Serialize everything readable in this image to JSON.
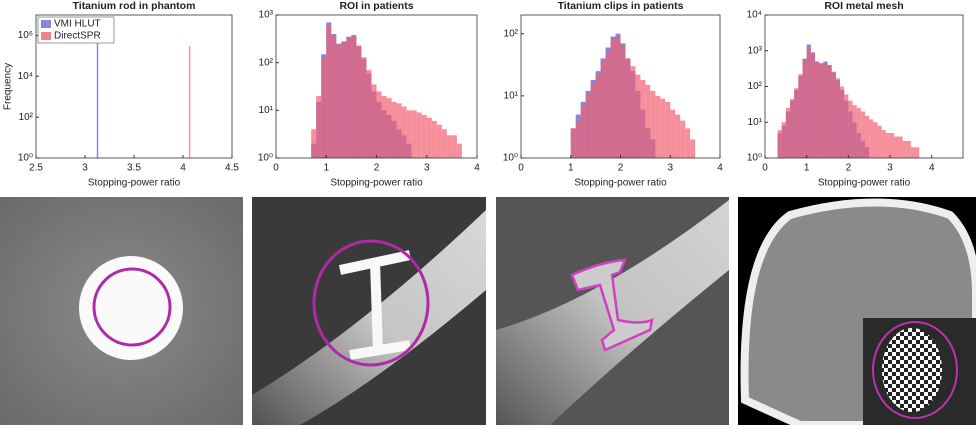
{
  "chart_data": [
    {
      "type": "histogram",
      "title": "Titanium rod in phantom",
      "xlabel": "Stopping-power ratio",
      "ylabel": "Frequency",
      "log_y": true,
      "legend": "upper left",
      "xlim": [
        2.5,
        4.5
      ],
      "xticks": [
        2.5,
        3,
        3.5,
        4,
        4.5
      ],
      "ylim": [
        1,
        10000000
      ],
      "yticks": [
        {
          "value": 1,
          "label": "10⁰"
        },
        {
          "value": 100,
          "label": "10²"
        },
        {
          "value": 10000,
          "label": "10⁴"
        },
        {
          "value": 1000000,
          "label": "10⁶"
        }
      ],
      "series": [
        {
          "name": "VMI HLUT",
          "color": "#6a6ad0",
          "bins": [
            3.12,
            3.135
          ],
          "values": [
            600000
          ]
        },
        {
          "name": "DirectSPR",
          "color": "#f26070",
          "bins": [
            4.06,
            4.075
          ],
          "values": [
            300000
          ]
        }
      ]
    },
    {
      "type": "histogram",
      "title": "ROI in patients",
      "xlabel": "Stopping-power ratio",
      "log_y": true,
      "xlim": [
        0,
        4
      ],
      "xticks": [
        0,
        1,
        2,
        3,
        4
      ],
      "ylim": [
        1,
        1000
      ],
      "yticks": [
        {
          "value": 1,
          "label": "10⁰"
        },
        {
          "value": 10,
          "label": "10¹"
        },
        {
          "value": 100,
          "label": "10²"
        },
        {
          "value": 1000,
          "label": "10³"
        }
      ],
      "bins": [
        0.7,
        0.8,
        0.9,
        1.0,
        1.1,
        1.2,
        1.3,
        1.4,
        1.5,
        1.6,
        1.7,
        1.8,
        1.9,
        2.0,
        2.1,
        2.2,
        2.3,
        2.4,
        2.5,
        2.6,
        2.7,
        2.8,
        2.9,
        3.0,
        3.1,
        3.2,
        3.3,
        3.4,
        3.5,
        3.6,
        3.7
      ],
      "series": [
        {
          "name": "VMI HLUT",
          "color": "#6a6ad0",
          "values": [
            2,
            15,
            150,
            700,
            400,
            250,
            280,
            350,
            380,
            220,
            120,
            60,
            25,
            15,
            10,
            8,
            6,
            4,
            3,
            2,
            1,
            1,
            1,
            1,
            1,
            1,
            1,
            1,
            1,
            1
          ]
        },
        {
          "name": "DirectSPR",
          "color": "#f26070",
          "values": [
            4,
            20,
            130,
            600,
            380,
            240,
            270,
            330,
            360,
            230,
            130,
            70,
            35,
            25,
            20,
            18,
            15,
            14,
            12,
            10,
            10,
            9,
            8,
            7,
            6,
            5,
            4,
            3,
            3,
            2
          ]
        }
      ]
    },
    {
      "type": "histogram",
      "title": "Titanium clips in patients",
      "xlabel": "Stopping-power ratio",
      "log_y": true,
      "xlim": [
        0,
        4
      ],
      "xticks": [
        0,
        1,
        2,
        3,
        4
      ],
      "ylim": [
        1,
        200
      ],
      "yticks": [
        {
          "value": 1,
          "label": "10⁰"
        },
        {
          "value": 10,
          "label": "10¹"
        },
        {
          "value": 100,
          "label": "10²"
        }
      ],
      "bins": [
        0.9,
        1.0,
        1.1,
        1.2,
        1.3,
        1.4,
        1.5,
        1.6,
        1.7,
        1.8,
        1.9,
        2.0,
        2.1,
        2.2,
        2.3,
        2.4,
        2.5,
        2.6,
        2.7,
        2.8,
        2.9,
        3.0,
        3.1,
        3.2,
        3.3,
        3.4,
        3.5
      ],
      "series": [
        {
          "name": "VMI HLUT",
          "color": "#6a6ad0",
          "values": [
            1,
            3,
            5,
            8,
            12,
            18,
            25,
            40,
            60,
            90,
            100,
            70,
            40,
            25,
            12,
            6,
            3,
            2,
            1,
            1,
            1,
            1,
            1,
            1,
            1,
            1
          ]
        },
        {
          "name": "DirectSPR",
          "color": "#f26070",
          "values": [
            1,
            3,
            4,
            7,
            11,
            16,
            22,
            35,
            50,
            80,
            90,
            65,
            40,
            30,
            22,
            18,
            15,
            12,
            10,
            9,
            8,
            6,
            5,
            4,
            3,
            2
          ]
        }
      ]
    },
    {
      "type": "histogram",
      "title": "ROI metal mesh",
      "xlabel": "Stopping-power ratio",
      "log_y": true,
      "xlim": [
        0,
        4.75
      ],
      "xticks": [
        0,
        1,
        2,
        3,
        4
      ],
      "ylim": [
        1,
        10000
      ],
      "yticks": [
        {
          "value": 1,
          "label": "10⁰"
        },
        {
          "value": 10,
          "label": "10¹"
        },
        {
          "value": 100,
          "label": "10²"
        },
        {
          "value": 1000,
          "label": "10³"
        },
        {
          "value": 10000,
          "label": "10⁴"
        }
      ],
      "bins": [
        0.3,
        0.4,
        0.5,
        0.6,
        0.7,
        0.8,
        0.9,
        1.0,
        1.1,
        1.2,
        1.3,
        1.4,
        1.5,
        1.6,
        1.7,
        1.8,
        1.9,
        2.0,
        2.1,
        2.2,
        2.3,
        2.4,
        2.5,
        2.6,
        2.7,
        2.8,
        2.9,
        3.0,
        3.1,
        3.2,
        3.3,
        3.4,
        3.5,
        3.6,
        3.7
      ],
      "series": [
        {
          "name": "VMI HLUT",
          "color": "#6a6ad0",
          "values": [
            5,
            8,
            20,
            40,
            80,
            200,
            600,
            1500,
            900,
            500,
            450,
            500,
            400,
            250,
            150,
            80,
            40,
            20,
            10,
            5,
            3,
            2,
            1,
            1,
            1,
            1,
            1,
            1,
            1,
            1,
            1,
            1,
            1,
            1
          ]
        },
        {
          "name": "DirectSPR",
          "color": "#f26070",
          "values": [
            6,
            10,
            25,
            45,
            90,
            220,
            550,
            1300,
            850,
            480,
            420,
            450,
            380,
            260,
            170,
            100,
            60,
            40,
            30,
            25,
            20,
            15,
            12,
            10,
            8,
            6,
            5,
            5,
            4,
            4,
            3,
            3,
            2,
            2
          ]
        }
      ]
    }
  ]
}
